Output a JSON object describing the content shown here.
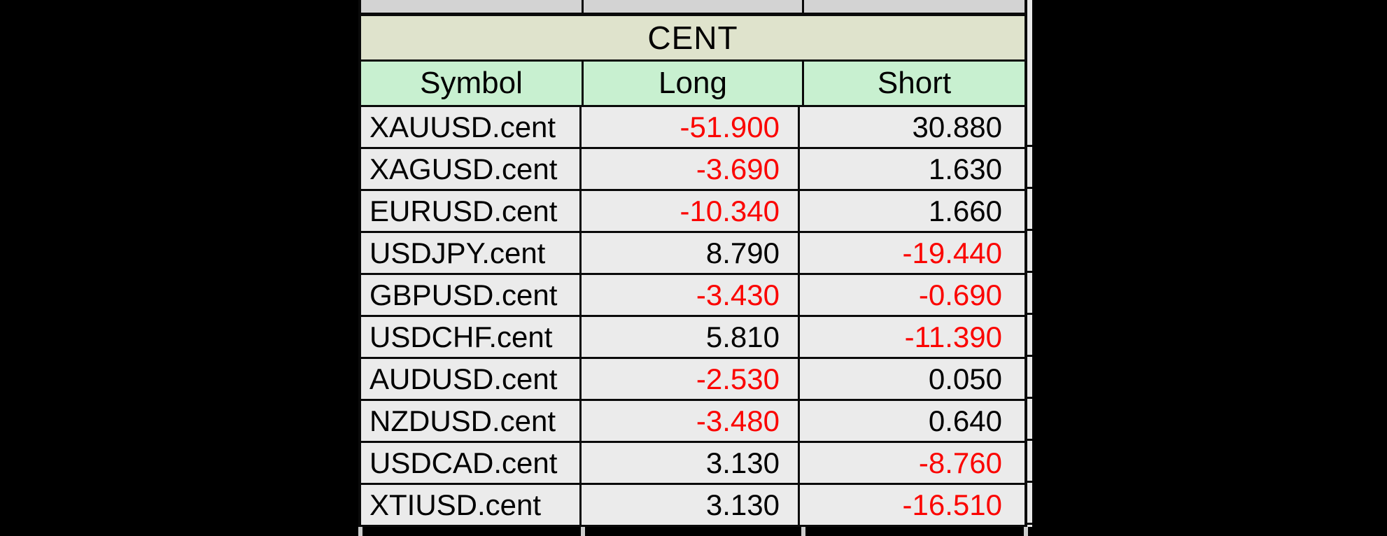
{
  "canvas": {
    "background": "#000000",
    "description": "Letterboxed spreadsheet screenshot of trading swap/position table"
  },
  "table": {
    "group_title": "CENT",
    "columns": [
      "Symbol",
      "Long",
      "Short"
    ],
    "rows": [
      {
        "symbol": "XAUUSD.cent",
        "long": "-51.900",
        "short": "30.880"
      },
      {
        "symbol": "XAGUSD.cent",
        "long": "-3.690",
        "short": "1.630"
      },
      {
        "symbol": "EURUSD.cent",
        "long": "-10.340",
        "short": "1.660"
      },
      {
        "symbol": "USDJPY.cent",
        "long": "8.790",
        "short": "-19.440"
      },
      {
        "symbol": "GBPUSD.cent",
        "long": "-3.430",
        "short": "-0.690"
      },
      {
        "symbol": "USDCHF.cent",
        "long": "5.810",
        "short": "-11.390"
      },
      {
        "symbol": "AUDUSD.cent",
        "long": "-2.530",
        "short": "0.050"
      },
      {
        "symbol": "NZDUSD.cent",
        "long": "-3.480",
        "short": "0.640"
      },
      {
        "symbol": "USDCAD.cent",
        "long": "3.130",
        "short": "-8.760"
      },
      {
        "symbol": "XTIUSD.cent",
        "long": "3.130",
        "short": "-16.510"
      }
    ],
    "colors": {
      "group_header_bg": "#dfe3cc",
      "column_header_bg": "#c8f0d0",
      "data_row_bg": "#ebebeb",
      "partial_top_row_bg": "#d3d3d3",
      "border": "#0a0a0a",
      "negative_value_text": "#fb0400",
      "positive_value_text": "#000000"
    }
  }
}
